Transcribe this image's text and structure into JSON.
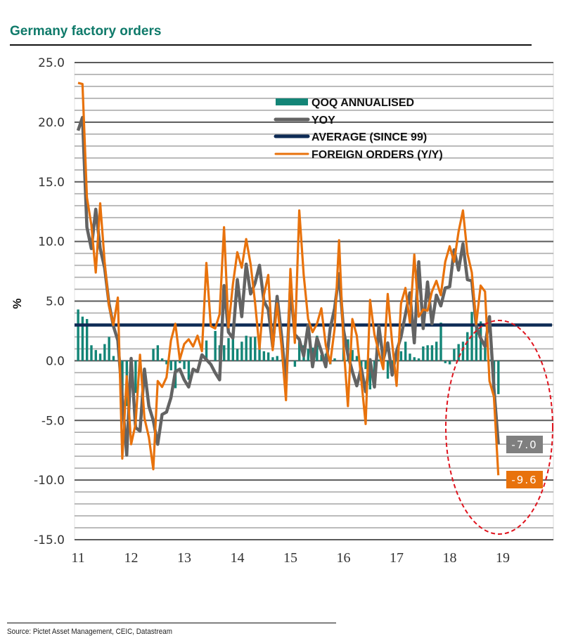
{
  "chart_data": {
    "type": "bar+line",
    "title": "Germany factory orders",
    "ylabel": "%",
    "xlabel": "",
    "ylim": [
      -15.0,
      25.0
    ],
    "yticks": [
      "25.0",
      "20.0",
      "15.0",
      "10.0",
      "5.0",
      "0.0",
      "-5.0",
      "-10.0",
      "-15.0"
    ],
    "ytick_values": [
      25,
      20,
      15,
      10,
      5,
      0,
      -5,
      -10,
      -15
    ],
    "xticks": [
      "11",
      "12",
      "13",
      "14",
      "15",
      "16",
      "17",
      "18",
      "19"
    ],
    "x_start": "2011-01",
    "x_frequency": "monthly",
    "grid": "horizontal, every 1.0 (major every 5.0)",
    "legend_position": "top-center",
    "legend": [
      {
        "name": "QOQ ANNUALISED",
        "kind": "bar",
        "color": "#138577"
      },
      {
        "name": "YOY",
        "kind": "line",
        "color": "#636363"
      },
      {
        "name": "AVERAGE (SINCE 99)",
        "kind": "line",
        "color": "#0d2b55"
      },
      {
        "name": "FOREIGN ORDERS (Y/Y)",
        "kind": "line",
        "color": "#e8720c"
      }
    ],
    "series": [
      {
        "name": "QOQ ANNUALISED",
        "type": "bar",
        "color": "#138577",
        "values": [
          4.3,
          3.7,
          3.5,
          1.3,
          0.9,
          0.6,
          1.4,
          2.0,
          0.4,
          0,
          -2.9,
          -3.8,
          0,
          -2.7,
          0,
          0,
          0,
          1.0,
          1.3,
          0.2,
          -0.3,
          -0.8,
          -2.3,
          -0.2,
          -0.7,
          -1.6,
          0,
          0,
          0,
          1.7,
          0,
          2.5,
          1.3,
          1.3,
          1.9,
          2.3,
          1.0,
          1.6,
          2.1,
          2.0,
          2.0,
          1.8,
          0.8,
          0.7,
          0.3,
          0.4,
          0.1,
          -1.4,
          0,
          -0.5,
          1.6,
          1.3,
          1.0,
          1.1,
          2.1,
          0.5,
          0.6,
          -0.3,
          0.2,
          0,
          1.9,
          1.8,
          0.9,
          0.4,
          -1.7,
          -0.7,
          -2.4,
          -1.1,
          0.1,
          0.5,
          -1.5,
          -0.9,
          0.3,
          0.8,
          1.6,
          0.6,
          0.3,
          0.2,
          1.2,
          1.3,
          1.3,
          1.6,
          3.2,
          -0.2,
          -0.3,
          1.0,
          1.4,
          1.6,
          2.4,
          4.1,
          3.3,
          3.3,
          1.3,
          0.1,
          -2.6,
          -2.8
        ]
      },
      {
        "name": "YOY",
        "type": "line",
        "color": "#636363",
        "values": [
          19.3,
          20.4,
          11.2,
          9.4,
          12.7,
          9.4,
          7.8,
          4.8,
          2.9,
          1.7,
          -3.1,
          -7.9,
          0.2,
          -5.6,
          -5.9,
          -0.7,
          -3.8,
          -5.0,
          -7.0,
          -4.5,
          -4.3,
          -3.1,
          -0.9,
          -0.7,
          -1.6,
          -2.2,
          -0.7,
          -0.9,
          0.5,
          0.1,
          -0.3,
          -1.0,
          -1.6,
          6.3,
          2.4,
          1.9,
          6.8,
          3.7,
          8.1,
          5.6,
          6.5,
          8.0,
          5.0,
          4.3,
          1.2,
          5.4,
          2.1,
          -1.9,
          6.2,
          2.2,
          1.8,
          0.4,
          3.0,
          -0.5,
          1.9,
          0.8,
          -0.5,
          2.7,
          4.4,
          7.3,
          2.6,
          0.5,
          -0.9,
          -2.1,
          -0.6,
          -2.6,
          0.1,
          -2.2,
          2.9,
          0.1,
          1.5,
          -1.2,
          0.8,
          2.0,
          3.9,
          5.7,
          1.5,
          8.3,
          2.7,
          6.6,
          3.1,
          5.5,
          4.6,
          6.1,
          6.2,
          9.3,
          7.6,
          9.8,
          6.8,
          6.7,
          2.9,
          1.9,
          1.2,
          3.7,
          -2.3,
          -7.0
        ]
      },
      {
        "name": "AVERAGE (SINCE 99)",
        "type": "line",
        "color": "#0d2b55",
        "value": 3.0
      },
      {
        "name": "FOREIGN ORDERS (Y/Y)",
        "type": "line",
        "color": "#e8720c",
        "values": [
          23.3,
          23.2,
          13.7,
          11.4,
          7.4,
          13.2,
          8.3,
          4.6,
          3.0,
          5.3,
          -8.2,
          -1.3,
          -7.0,
          -5.3,
          0.5,
          -4.8,
          -6.4,
          -9.1,
          -1.7,
          -2.2,
          -1.4,
          1.7,
          3.1,
          0.1,
          1.4,
          1.8,
          1.2,
          2.1,
          0.8,
          8.2,
          2.9,
          2.7,
          3.9,
          11.2,
          2.8,
          6.4,
          9.1,
          7.8,
          10.2,
          8.1,
          4.9,
          1.0,
          5.5,
          7.2,
          0.9,
          4.8,
          1.2,
          -3.3,
          7.7,
          1.5,
          12.6,
          7.2,
          3.5,
          2.4,
          3.1,
          4.4,
          1.3,
          -0.2,
          2.7,
          10.1,
          1.4,
          -3.8,
          3.5,
          2.1,
          -1.5,
          -5.3,
          5.1,
          2.2,
          0.7,
          -0.7,
          5.6,
          1.5,
          -2.1,
          4.8,
          6.1,
          3.2,
          8.9,
          3.7,
          4.3,
          4.2,
          5.8,
          6.7,
          5.5,
          8.3,
          9.6,
          8.3,
          10.8,
          12.6,
          9.0,
          7.4,
          3.1,
          6.3,
          5.8,
          -1.7,
          -3.0,
          -9.6
        ]
      }
    ],
    "annotations": [
      {
        "text": "-7.0",
        "series": "YOY",
        "color": "#7f7f7f"
      },
      {
        "text": "-9.6",
        "series": "FOREIGN ORDERS (Y/Y)",
        "color": "#e8720c"
      },
      {
        "shape": "dashed-ellipse",
        "color": "#e0141e",
        "region": "late 2018 - 2019"
      }
    ]
  },
  "page": {
    "title": "Germany factory orders",
    "source": "Source: Pictet Asset Management, CEIC,  Datastream"
  }
}
